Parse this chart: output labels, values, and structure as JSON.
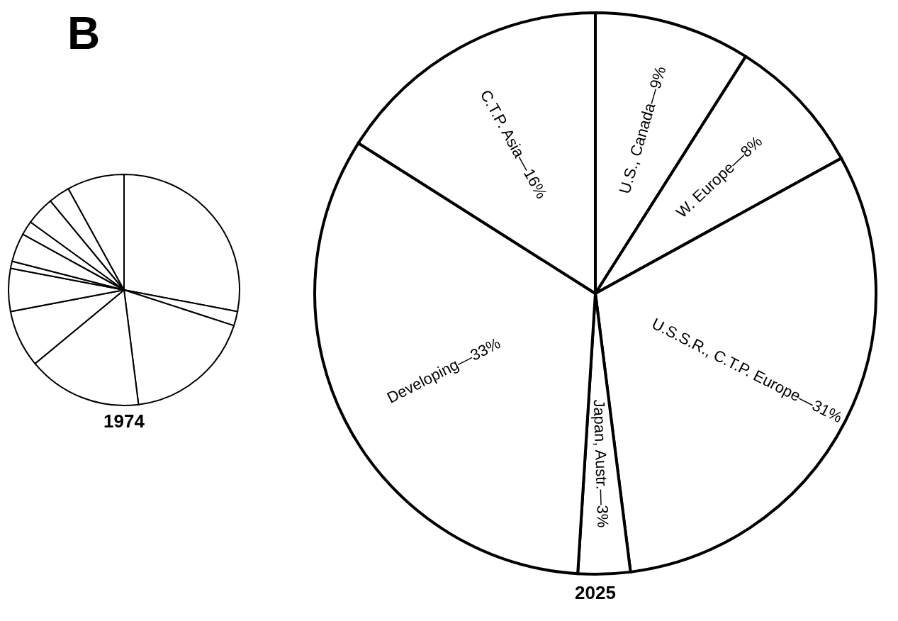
{
  "chart_data": [
    {
      "type": "pie",
      "title": "1974",
      "annotations": [
        "B"
      ],
      "categories": [
        null,
        null,
        null,
        null,
        null,
        null,
        null,
        null,
        null,
        null,
        null,
        null
      ],
      "values": [
        28,
        2,
        18,
        16,
        8,
        6,
        1,
        4,
        2,
        4,
        3,
        8
      ],
      "colors": [
        "#ffffff",
        "#ffffff",
        "#ffffff",
        "#ffffff",
        "#ffffff",
        "#ffffff",
        "#ffffff",
        "#ffffff",
        "#ffffff",
        "#ffffff",
        "#ffffff",
        "#ffffff"
      ]
    },
    {
      "type": "pie",
      "title": "2025",
      "categories": [
        "U.S., Canada—9%",
        "W. Europe—8%",
        "U.S.S.R., C.T.P. Europe—31%",
        "Japan, Austr.—3%",
        "Developing—33%",
        "C.T.P. Asia—16%"
      ],
      "values": [
        9,
        8,
        31,
        3,
        33,
        16
      ],
      "colors": [
        "#ffffff",
        "#ffffff",
        "#ffffff",
        "#ffffff",
        "#ffffff",
        "#ffffff"
      ]
    }
  ]
}
